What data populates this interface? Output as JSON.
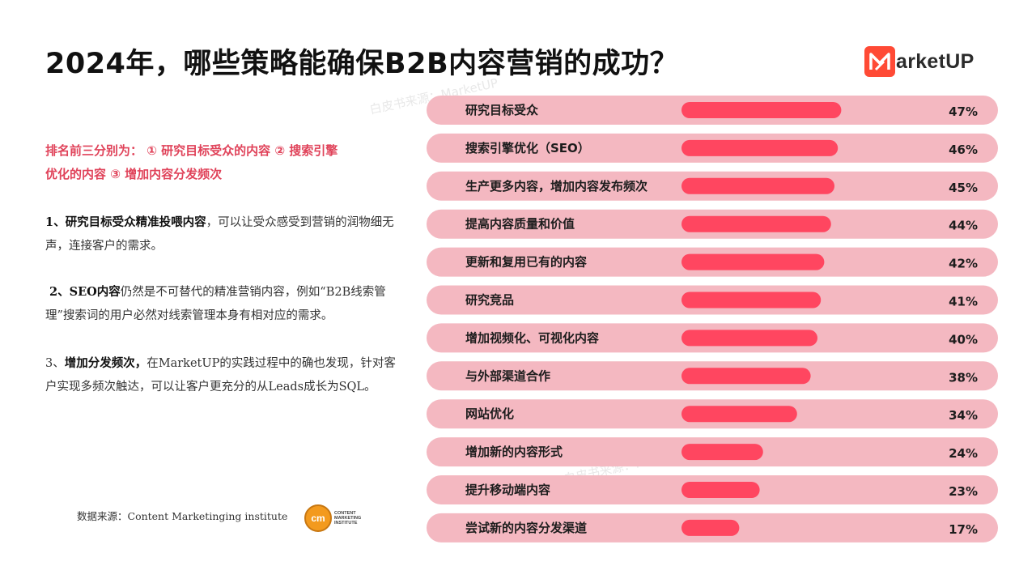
{
  "title": "2024年，哪些策略能确保B2B内容营销的成功？",
  "logo": {
    "text": "arketUP"
  },
  "watermark": "白皮书来源：MarketUP",
  "summary": {
    "line1": "排名前三分别为：  ① 研究目标受众的内容   ② 搜索引擎",
    "line2": "优化的内容   ③ 增加内容分发频次"
  },
  "points": [
    {
      "bold": "1、研究目标受众精准投喂内容",
      "rest": "，可以让受众感受到营销的润物细无声，连接客户的需求。"
    },
    {
      "prefix": " 2、",
      "bold": "SEO内容",
      "rest": "仍然是不可替代的精准营销内容，例如“B2B线索管理”搜索词的用户必然对线索管理本身有相对应的需求。"
    },
    {
      "prefix": "3、",
      "bold": "增加分发频次，",
      "rest": "在MarketUP的实践过程中的确也发现，针对客户实现多频次触达，可以让客户更充分的从Leads成长为SQL。"
    }
  ],
  "source": {
    "text": "数据来源：Content Marketinging institute",
    "cmi_mark": "cm",
    "cmi_text": "CONTENT MARKETING INSTITUTE"
  },
  "colors": {
    "row_bg": "#f4b8c1",
    "bar": "#ff4660",
    "highlight": "#e0435a",
    "logo": "#ff4a35"
  },
  "chart_data": {
    "type": "bar",
    "orientation": "horizontal",
    "categories": [
      "研究目标受众",
      "搜索引擎优化（SEO）",
      "生产更多内容，增加内容发布频次",
      "提高内容质量和价值",
      "更新和复用已有的内容",
      "研究竞品",
      "增加视频化、可视化内容",
      "与外部渠道合作",
      "网站优化",
      "增加新的内容形式",
      "提升移动端内容",
      "尝试新的内容分发渠道"
    ],
    "values": [
      47,
      46,
      45,
      44,
      42,
      41,
      40,
      38,
      34,
      24,
      23,
      17
    ],
    "value_labels": [
      "47%",
      "46%",
      "45%",
      "44%",
      "42%",
      "41%",
      "40%",
      "38%",
      "34%",
      "24%",
      "23%",
      "17%"
    ]
  }
}
